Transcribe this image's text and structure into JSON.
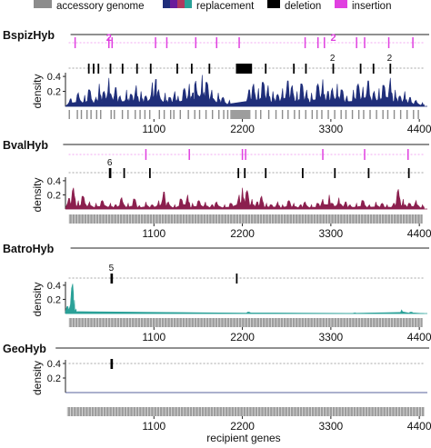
{
  "legend": [
    {
      "label": "accessory genome",
      "kind": "solid",
      "color": "#8c8c8c"
    },
    {
      "label": "replacement",
      "kind": "multi",
      "colors": [
        "#1f2e7a",
        "#6a1b9a",
        "#b0385f",
        "#2aa198"
      ]
    },
    {
      "label": "deletion",
      "kind": "solid",
      "color": "#000000"
    },
    {
      "label": "insertion",
      "kind": "solid",
      "color": "#e040e0"
    }
  ],
  "colors": {
    "accessory": "#8c8c8c",
    "deletion": "#000000",
    "insertion": "#e040e0",
    "axis": "#222222",
    "dotted": "#888888"
  },
  "x_axis": {
    "ticks": [
      1100,
      2200,
      3300,
      4400
    ],
    "xlim": [
      0,
      4500
    ],
    "label": "recipient genes"
  },
  "chart_data": [
    {
      "type": "area",
      "title": "BspizHyb",
      "ylabel": "density",
      "ylim": [
        0,
        0.45
      ],
      "yticks": [
        0.2,
        0.4
      ],
      "color": "#1f2e7a",
      "insertions": [
        120,
        540,
        580,
        1120,
        1260,
        1620,
        1880,
        2160,
        2980,
        3140,
        3220,
        3620,
        3720,
        4020,
        4320
      ],
      "insertion_labels": [
        {
          "x": 540,
          "text": "2"
        },
        {
          "x": 3330,
          "text": "2"
        }
      ],
      "deletions": [
        {
          "x": 280,
          "w": 20
        },
        {
          "x": 340,
          "w": 20
        },
        {
          "x": 400,
          "w": 20
        },
        {
          "x": 550,
          "w": 20
        },
        {
          "x": 700,
          "w": 20
        },
        {
          "x": 880,
          "w": 20
        },
        {
          "x": 1050,
          "w": 20
        },
        {
          "x": 1380,
          "w": 20
        },
        {
          "x": 1560,
          "w": 20
        },
        {
          "x": 1780,
          "w": 20
        },
        {
          "x": 2120,
          "w": 200
        },
        {
          "x": 2480,
          "w": 20
        },
        {
          "x": 2830,
          "w": 20
        },
        {
          "x": 2980,
          "w": 20
        },
        {
          "x": 3320,
          "w": 20
        },
        {
          "x": 3660,
          "w": 20
        },
        {
          "x": 3820,
          "w": 20
        },
        {
          "x": 4030,
          "w": 20
        }
      ],
      "deletion_labels": [
        {
          "x": 3320,
          "text": "2"
        },
        {
          "x": 4030,
          "text": "2"
        }
      ],
      "peaks": [
        [
          60,
          0.1
        ],
        [
          160,
          0.18
        ],
        [
          240,
          0.15
        ],
        [
          300,
          0.22
        ],
        [
          380,
          0.12
        ],
        [
          420,
          0.3
        ],
        [
          480,
          0.2
        ],
        [
          540,
          0.38
        ],
        [
          620,
          0.25
        ],
        [
          680,
          0.14
        ],
        [
          760,
          0.22
        ],
        [
          820,
          0.16
        ],
        [
          880,
          0.28
        ],
        [
          940,
          0.2
        ],
        [
          1000,
          0.14
        ],
        [
          1080,
          0.32
        ],
        [
          1120,
          0.36
        ],
        [
          1160,
          0.22
        ],
        [
          1240,
          0.18
        ],
        [
          1300,
          0.12
        ],
        [
          1360,
          0.2
        ],
        [
          1400,
          0.14
        ],
        [
          1480,
          0.24
        ],
        [
          1540,
          0.3
        ],
        [
          1580,
          0.18
        ],
        [
          1620,
          0.34
        ],
        [
          1700,
          0.42
        ],
        [
          1760,
          0.32
        ],
        [
          1820,
          0.22
        ],
        [
          1900,
          0.18
        ],
        [
          1960,
          0.12
        ],
        [
          2040,
          0.08
        ],
        [
          2280,
          0.22
        ],
        [
          2340,
          0.3
        ],
        [
          2400,
          0.24
        ],
        [
          2460,
          0.32
        ],
        [
          2520,
          0.28
        ],
        [
          2580,
          0.2
        ],
        [
          2640,
          0.16
        ],
        [
          2700,
          0.24
        ],
        [
          2760,
          0.34
        ],
        [
          2820,
          0.28
        ],
        [
          2880,
          0.2
        ],
        [
          2940,
          0.3
        ],
        [
          3000,
          0.22
        ],
        [
          3060,
          0.18
        ],
        [
          3140,
          0.3
        ],
        [
          3200,
          0.36
        ],
        [
          3260,
          0.2
        ],
        [
          3320,
          0.24
        ],
        [
          3380,
          0.3
        ],
        [
          3440,
          0.22
        ],
        [
          3500,
          0.14
        ],
        [
          3580,
          0.22
        ],
        [
          3640,
          0.3
        ],
        [
          3700,
          0.26
        ],
        [
          3760,
          0.34
        ],
        [
          3840,
          0.2
        ],
        [
          3900,
          0.24
        ],
        [
          3960,
          0.28
        ],
        [
          4040,
          0.38
        ],
        [
          4100,
          0.22
        ],
        [
          4160,
          0.14
        ],
        [
          4220,
          0.2
        ],
        [
          4280,
          0.12
        ],
        [
          4360,
          0.08
        ],
        [
          4440,
          0.05
        ]
      ],
      "accessory": [
        40,
        140,
        190,
        260,
        310,
        380,
        430,
        560,
        600,
        700,
        770,
        860,
        920,
        980,
        1040,
        1160,
        1220,
        1300,
        1340,
        1420,
        1520,
        1600,
        1660,
        1740,
        1820,
        1900,
        1960,
        2010,
        2360,
        2420,
        2520,
        2610,
        2690,
        2760,
        2840,
        2900,
        2980,
        3060,
        3120,
        3180,
        3260,
        3340,
        3420,
        3480,
        3560,
        3640,
        3700,
        3780,
        3860,
        3940,
        4000,
        4080,
        4160,
        4240,
        4320,
        4380
      ],
      "accessory_blocks": [
        {
          "x": 2050,
          "w": 250
        }
      ]
    },
    {
      "type": "area",
      "title": "BvalHyb",
      "ylabel": "density",
      "ylim": [
        0,
        0.45
      ],
      "yticks": [
        0.2,
        0.4
      ],
      "color": "#8b1f4e",
      "insertions": [
        1000,
        1540,
        2200,
        2240,
        3200,
        3720,
        4260
      ],
      "insertion_labels": [],
      "deletions": [
        {
          "x": 540,
          "w": 30
        },
        {
          "x": 720,
          "w": 20
        },
        {
          "x": 1040,
          "w": 20
        },
        {
          "x": 2140,
          "w": 20
        },
        {
          "x": 2220,
          "w": 20
        },
        {
          "x": 2480,
          "w": 20
        },
        {
          "x": 2940,
          "w": 20
        },
        {
          "x": 3340,
          "w": 20
        },
        {
          "x": 3760,
          "w": 20
        },
        {
          "x": 4260,
          "w": 20
        }
      ],
      "deletion_labels": [
        {
          "x": 550,
          "text": "6"
        }
      ],
      "peaks": [
        [
          40,
          0.15
        ],
        [
          100,
          0.3
        ],
        [
          160,
          0.12
        ],
        [
          220,
          0.18
        ],
        [
          300,
          0.1
        ],
        [
          380,
          0.08
        ],
        [
          460,
          0.12
        ],
        [
          560,
          0.08
        ],
        [
          620,
          0.06
        ],
        [
          700,
          0.16
        ],
        [
          780,
          0.08
        ],
        [
          860,
          0.14
        ],
        [
          920,
          0.05
        ],
        [
          1000,
          0.1
        ],
        [
          1080,
          0.06
        ],
        [
          1160,
          0.12
        ],
        [
          1220,
          0.24
        ],
        [
          1280,
          0.1
        ],
        [
          1360,
          0.06
        ],
        [
          1440,
          0.14
        ],
        [
          1520,
          0.2
        ],
        [
          1580,
          0.08
        ],
        [
          1660,
          0.12
        ],
        [
          1740,
          0.1
        ],
        [
          1820,
          0.06
        ],
        [
          1880,
          0.1
        ],
        [
          1980,
          0.06
        ],
        [
          2060,
          0.08
        ],
        [
          2160,
          0.2
        ],
        [
          2200,
          0.3
        ],
        [
          2260,
          0.26
        ],
        [
          2320,
          0.14
        ],
        [
          2380,
          0.1
        ],
        [
          2440,
          0.18
        ],
        [
          2500,
          0.08
        ],
        [
          2560,
          0.06
        ],
        [
          2640,
          0.1
        ],
        [
          2700,
          0.06
        ],
        [
          2780,
          0.12
        ],
        [
          2840,
          0.08
        ],
        [
          2920,
          0.06
        ],
        [
          2980,
          0.1
        ],
        [
          3060,
          0.06
        ],
        [
          3140,
          0.08
        ],
        [
          3200,
          0.14
        ],
        [
          3280,
          0.2
        ],
        [
          3320,
          0.08
        ],
        [
          3400,
          0.16
        ],
        [
          3480,
          0.1
        ],
        [
          3540,
          0.06
        ],
        [
          3620,
          0.08
        ],
        [
          3700,
          0.12
        ],
        [
          3780,
          0.06
        ],
        [
          3860,
          0.1
        ],
        [
          3940,
          0.08
        ],
        [
          4000,
          0.06
        ],
        [
          4080,
          0.08
        ],
        [
          4140,
          0.28
        ],
        [
          4200,
          0.14
        ],
        [
          4280,
          0.08
        ],
        [
          4360,
          0.12
        ],
        [
          4440,
          0.06
        ]
      ],
      "accessory": [],
      "accessory_blocks": [
        {
          "x": 40,
          "w": 4400
        }
      ]
    },
    {
      "type": "area",
      "title": "BatroHyb",
      "ylabel": "density",
      "ylim": [
        0,
        0.45
      ],
      "yticks": [
        0.2,
        0.4
      ],
      "color": "#2aa198",
      "insertions": [],
      "insertion_labels": [],
      "deletions": [
        {
          "x": 560,
          "w": 30
        },
        {
          "x": 2120,
          "w": 20
        }
      ],
      "deletion_labels": [
        {
          "x": 570,
          "text": "5"
        }
      ],
      "peaks": [
        [
          20,
          0.1
        ],
        [
          90,
          0.42
        ],
        [
          130,
          0.06
        ],
        [
          2280,
          0.02
        ],
        [
          3600,
          0.01
        ],
        [
          4180,
          0.05
        ],
        [
          4300,
          0.02
        ]
      ],
      "accessory": [],
      "accessory_blocks": [
        {
          "x": 40,
          "w": 4400
        }
      ]
    },
    {
      "type": "area",
      "title": "GeoHyb",
      "ylabel": "density",
      "ylim": [
        0,
        0.45
      ],
      "yticks": [
        0.2,
        0.4
      ],
      "color": "#1f2e7a",
      "insertions": [],
      "insertion_labels": [],
      "deletions": [
        {
          "x": 560,
          "w": 30
        }
      ],
      "deletion_labels": [],
      "peaks": [],
      "accessory": [],
      "accessory_blocks": [
        {
          "x": 20,
          "w": 4440
        }
      ]
    }
  ]
}
